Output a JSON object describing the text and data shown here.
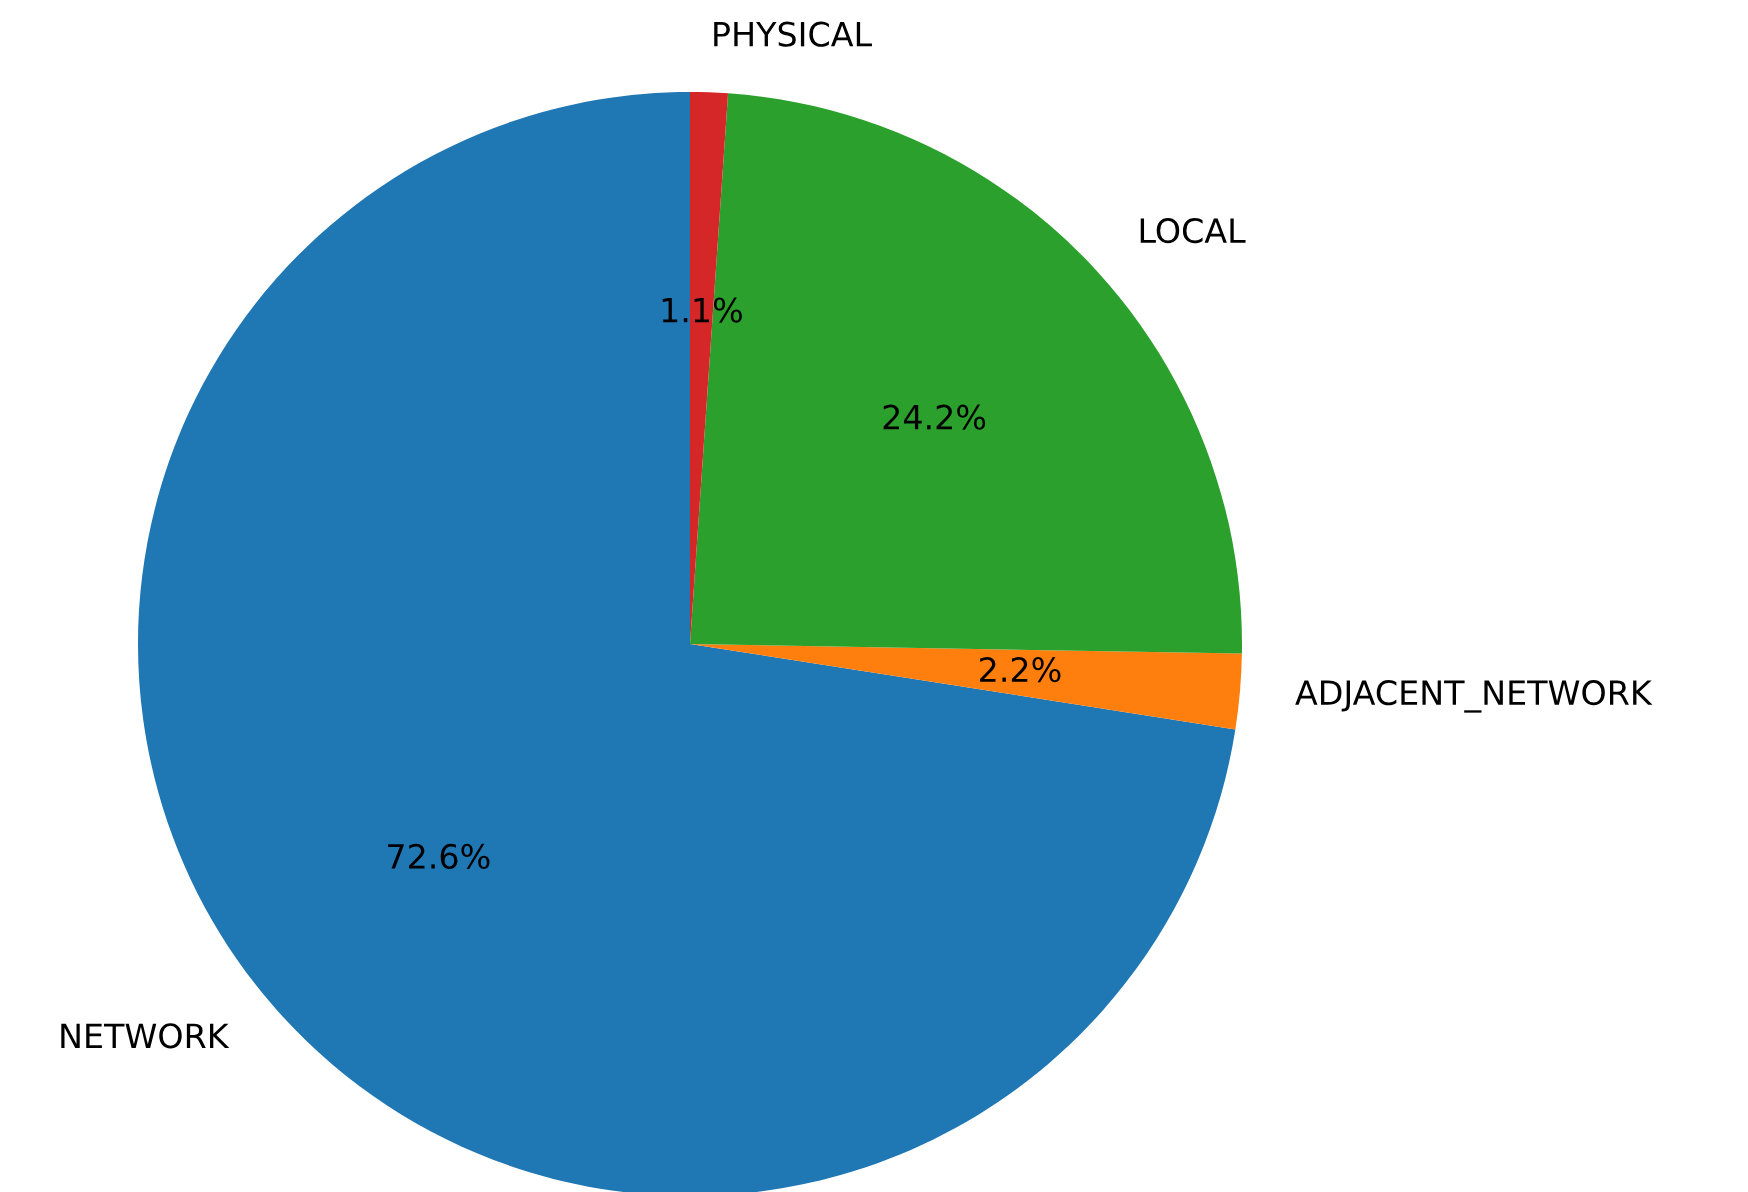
{
  "chart_data": {
    "type": "pie",
    "categories": [
      "NETWORK",
      "ADJACENT_NETWORK",
      "LOCAL",
      "PHYSICAL"
    ],
    "values": [
      72.6,
      2.2,
      24.2,
      1.1
    ],
    "value_labels": [
      "72.6%",
      "2.2%",
      "24.2%",
      "1.1%"
    ],
    "colors": [
      "#1f77b4",
      "#ff7f0e",
      "#2ca02c",
      "#d62728"
    ],
    "legend": false
  }
}
